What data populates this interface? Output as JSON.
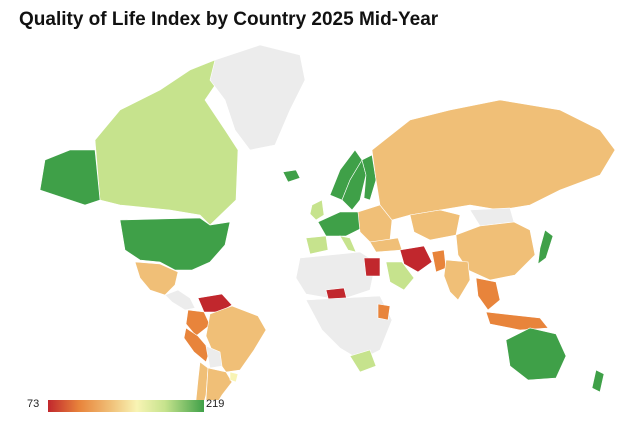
{
  "title": "Quality of Life Index by Country 2025 Mid-Year",
  "legend": {
    "min": "73",
    "max": "219"
  },
  "colors": {
    "no_data": "#ececec",
    "low": "#c1272d",
    "mid_low": "#e8843b",
    "mid": "#f0bf77",
    "neutral": "#f8f4b4",
    "mid_high": "#c6e38d",
    "high": "#3fa048"
  },
  "countries": [
    {
      "name": "Canada",
      "tone": "mid_high"
    },
    {
      "name": "United States",
      "tone": "high"
    },
    {
      "name": "Alaska",
      "tone": "high"
    },
    {
      "name": "Greenland",
      "tone": "no_data"
    },
    {
      "name": "Mexico",
      "tone": "mid"
    },
    {
      "name": "Central America",
      "tone": "no_data"
    },
    {
      "name": "Venezuela",
      "tone": "low"
    },
    {
      "name": "Colombia",
      "tone": "mid_low"
    },
    {
      "name": "Peru",
      "tone": "mid_low"
    },
    {
      "name": "Brazil",
      "tone": "mid"
    },
    {
      "name": "Bolivia",
      "tone": "no_data"
    },
    {
      "name": "Chile",
      "tone": "mid"
    },
    {
      "name": "Argentina",
      "tone": "mid"
    },
    {
      "name": "Uruguay",
      "tone": "neutral"
    },
    {
      "name": "Iceland",
      "tone": "high"
    },
    {
      "name": "Norway",
      "tone": "high"
    },
    {
      "name": "Sweden",
      "tone": "high"
    },
    {
      "name": "Finland",
      "tone": "high"
    },
    {
      "name": "United Kingdom",
      "tone": "mid_high"
    },
    {
      "name": "Western Europe",
      "tone": "high"
    },
    {
      "name": "Spain",
      "tone": "mid_high"
    },
    {
      "name": "Italy",
      "tone": "mid_high"
    },
    {
      "name": "Eastern Europe",
      "tone": "mid"
    },
    {
      "name": "Turkey",
      "tone": "mid"
    },
    {
      "name": "Russia",
      "tone": "mid"
    },
    {
      "name": "Kazakhstan",
      "tone": "mid"
    },
    {
      "name": "Mongolia",
      "tone": "no_data"
    },
    {
      "name": "China",
      "tone": "mid"
    },
    {
      "name": "Japan",
      "tone": "high"
    },
    {
      "name": "Iran",
      "tone": "low"
    },
    {
      "name": "Saudi Arabia",
      "tone": "mid_high"
    },
    {
      "name": "Pakistan",
      "tone": "mid_low"
    },
    {
      "name": "India",
      "tone": "mid"
    },
    {
      "name": "Southeast Asia",
      "tone": "mid_low"
    },
    {
      "name": "Indonesia",
      "tone": "mid_low"
    },
    {
      "name": "Egypt",
      "tone": "low"
    },
    {
      "name": "Nigeria",
      "tone": "low"
    },
    {
      "name": "Kenya",
      "tone": "mid_low"
    },
    {
      "name": "North Africa",
      "tone": "no_data"
    },
    {
      "name": "Central Africa",
      "tone": "no_data"
    },
    {
      "name": "South Africa",
      "tone": "mid_high"
    },
    {
      "name": "Australia",
      "tone": "high"
    },
    {
      "name": "New Zealand",
      "tone": "high"
    }
  ]
}
